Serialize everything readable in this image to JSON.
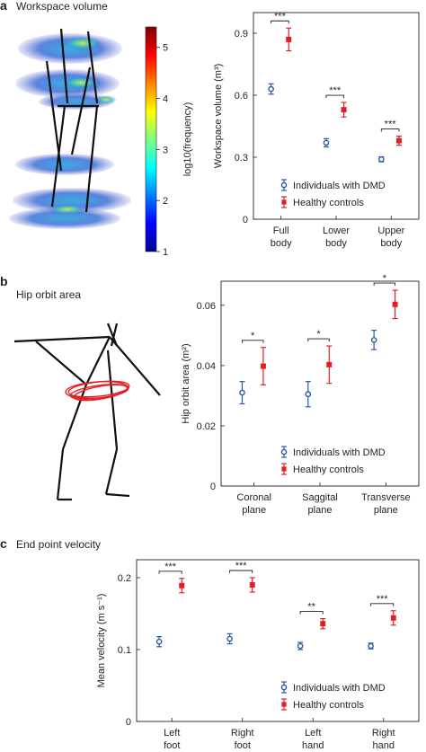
{
  "panel_a": {
    "letter": "a",
    "title": "Workspace volume",
    "colorbar": {
      "label": "log10(frequency)",
      "ticks": [
        1,
        2,
        3,
        4,
        5
      ],
      "range": [
        1,
        5.4
      ],
      "colormap": "jet"
    }
  },
  "panel_b": {
    "letter": "b",
    "title": "Hip orbit area",
    "hip_ring_color": "#e31f26"
  },
  "panel_c": {
    "letter": "c",
    "title": "End point velocity"
  },
  "colors": {
    "dmd": "#2b59a8",
    "healthy": "#e31f26",
    "axis": "#231f20"
  },
  "chart_data": [
    {
      "id": "workspace",
      "type": "scatter",
      "ylabel": "Workspace volume (m³)",
      "ylim": [
        0,
        1.0
      ],
      "yticks": [
        0,
        0.3,
        0.6,
        0.9
      ],
      "yticks_text": [
        "0",
        "0.3",
        "0.6",
        "0.9"
      ],
      "categories": [
        [
          "Full",
          "body"
        ],
        [
          "Lower",
          "body"
        ],
        [
          "Upper",
          "body"
        ]
      ],
      "series": [
        {
          "name": "Individuals with DMD",
          "color": "#2b59a8",
          "marker": "circle",
          "values": [
            0.63,
            0.37,
            0.29
          ],
          "errors": [
            0.025,
            0.02,
            0.012
          ]
        },
        {
          "name": "Healthy controls",
          "color": "#e31f26",
          "marker": "square",
          "values": [
            0.87,
            0.53,
            0.38
          ],
          "errors": [
            0.055,
            0.035,
            0.022
          ]
        }
      ],
      "significance": [
        "***",
        "***",
        "***"
      ],
      "legend": "lower-right"
    },
    {
      "id": "hip",
      "type": "scatter",
      "ylabel": "Hip orbit area (m²)",
      "ylim": [
        0,
        0.068
      ],
      "yticks": [
        0,
        0.02,
        0.04,
        0.06
      ],
      "yticks_text": [
        "0",
        "0.02",
        "0.04",
        "0.06"
      ],
      "categories": [
        [
          "Coronal",
          "plane"
        ],
        [
          "Saggital",
          "plane"
        ],
        [
          "Transverse",
          "plane"
        ]
      ],
      "series": [
        {
          "name": "Individuals with DMD",
          "color": "#2b59a8",
          "marker": "circle",
          "values": [
            0.031,
            0.0305,
            0.0485
          ],
          "errors": [
            0.0037,
            0.0042,
            0.0032
          ]
        },
        {
          "name": "Healthy controls",
          "color": "#e31f26",
          "marker": "square",
          "values": [
            0.0398,
            0.0403,
            0.0603
          ],
          "errors": [
            0.0062,
            0.0062,
            0.0047
          ]
        }
      ],
      "significance": [
        "*",
        "*",
        "*"
      ],
      "legend": "lower-right"
    },
    {
      "id": "velocity",
      "type": "scatter",
      "ylabel": "Mean velocity (m s⁻¹)",
      "ylim": [
        0,
        0.225
      ],
      "yticks": [
        0,
        0.1,
        0.2
      ],
      "yticks_text": [
        "0",
        "0.1",
        "0.2"
      ],
      "categories": [
        [
          "Left",
          "foot"
        ],
        [
          "Right",
          "foot"
        ],
        [
          "Left",
          "hand"
        ],
        [
          "Right",
          "hand"
        ]
      ],
      "series": [
        {
          "name": "Individuals with DMD",
          "color": "#2b59a8",
          "marker": "circle",
          "values": [
            0.111,
            0.115,
            0.105,
            0.105
          ],
          "errors": [
            0.007,
            0.007,
            0.005,
            0.004
          ]
        },
        {
          "name": "Healthy controls",
          "color": "#e31f26",
          "marker": "square",
          "values": [
            0.189,
            0.19,
            0.136,
            0.144
          ],
          "errors": [
            0.01,
            0.01,
            0.007,
            0.01
          ]
        }
      ],
      "significance": [
        "***",
        "***",
        "**",
        "***"
      ],
      "legend": "lower-right"
    }
  ]
}
